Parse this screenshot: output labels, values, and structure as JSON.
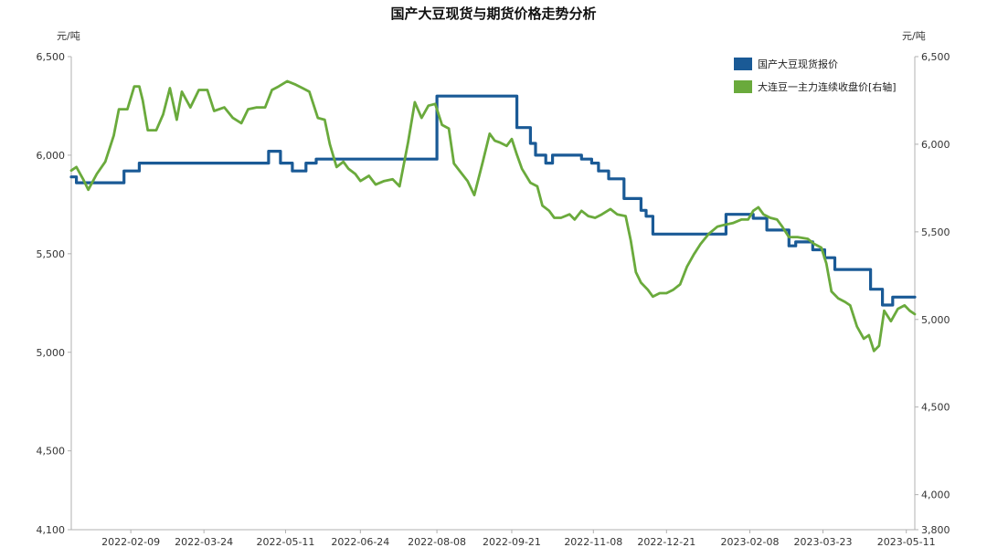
{
  "chart_data": {
    "type": "line",
    "title": "国产大豆现货与期货价格走势分析",
    "left_unit": "元/吨",
    "right_unit": "元/吨",
    "left_ylim": [
      4100,
      6500
    ],
    "left_yticks": [
      4100,
      4500,
      5000,
      5500,
      6000,
      6500
    ],
    "left_ytick_labels": [
      "4,100",
      "4,500",
      "5,000",
      "5,500",
      "6,000",
      "6,500"
    ],
    "right_ylim": [
      3800,
      6500
    ],
    "right_yticks": [
      3800,
      4000,
      4500,
      5000,
      5500,
      6000,
      6500
    ],
    "right_ytick_labels": [
      "3,800",
      "4,000",
      "4,500",
      "5,000",
      "5,500",
      "6,000",
      "6,500"
    ],
    "x_range": [
      "2022-01-05",
      "2023-05-16"
    ],
    "xticks": [
      "2022-02-09",
      "2022-03-24",
      "2022-05-11",
      "2022-06-24",
      "2022-08-08",
      "2022-09-21",
      "2022-11-08",
      "2022-12-21",
      "2023-02-08",
      "2023-03-23",
      "2023-05-11"
    ],
    "grid": false,
    "legend_position": "top-right",
    "series": [
      {
        "name": "国产大豆现货报价",
        "axis": "left",
        "color": "#1a5a96",
        "interpolation": "step",
        "points": [
          [
            "2022-01-05",
            5890
          ],
          [
            "2022-01-08",
            5860
          ],
          [
            "2022-02-03",
            5860
          ],
          [
            "2022-02-05",
            5920
          ],
          [
            "2022-02-14",
            5960
          ],
          [
            "2022-04-22",
            5960
          ],
          [
            "2022-05-01",
            6020
          ],
          [
            "2022-05-08",
            5960
          ],
          [
            "2022-05-15",
            5920
          ],
          [
            "2022-05-23",
            5960
          ],
          [
            "2022-05-29",
            5980
          ],
          [
            "2022-08-04",
            5980
          ],
          [
            "2022-08-08",
            6300
          ],
          [
            "2022-09-24",
            6140
          ],
          [
            "2022-10-02",
            6060
          ],
          [
            "2022-10-05",
            6000
          ],
          [
            "2022-10-11",
            5960
          ],
          [
            "2022-10-15",
            6000
          ],
          [
            "2022-11-01",
            5980
          ],
          [
            "2022-11-07",
            5960
          ],
          [
            "2022-11-11",
            5920
          ],
          [
            "2022-11-17",
            5880
          ],
          [
            "2022-11-26",
            5780
          ],
          [
            "2022-12-06",
            5720
          ],
          [
            "2022-12-09",
            5690
          ],
          [
            "2022-12-13",
            5600
          ],
          [
            "2023-01-25",
            5700
          ],
          [
            "2023-02-10",
            5680
          ],
          [
            "2023-02-18",
            5620
          ],
          [
            "2023-02-24",
            5620
          ],
          [
            "2023-03-03",
            5540
          ],
          [
            "2023-03-07",
            5560
          ],
          [
            "2023-03-17",
            5520
          ],
          [
            "2023-03-24",
            5480
          ],
          [
            "2023-03-30",
            5420
          ],
          [
            "2023-04-20",
            5320
          ],
          [
            "2023-04-27",
            5240
          ],
          [
            "2023-05-03",
            5280
          ],
          [
            "2023-05-16",
            5280
          ]
        ]
      },
      {
        "name": "大连豆一主力连续收盘价[右轴]",
        "axis": "right",
        "color": "#6aaa3c",
        "interpolation": "linear",
        "points": [
          [
            "2022-01-05",
            5850
          ],
          [
            "2022-01-08",
            5870
          ],
          [
            "2022-01-12",
            5800
          ],
          [
            "2022-01-15",
            5740
          ],
          [
            "2022-01-20",
            5830
          ],
          [
            "2022-01-25",
            5900
          ],
          [
            "2022-01-30",
            6050
          ],
          [
            "2022-02-02",
            6200
          ],
          [
            "2022-02-07",
            6200
          ],
          [
            "2022-02-11",
            6330
          ],
          [
            "2022-02-14",
            6330
          ],
          [
            "2022-02-16",
            6250
          ],
          [
            "2022-02-19",
            6080
          ],
          [
            "2022-02-24",
            6080
          ],
          [
            "2022-02-28",
            6170
          ],
          [
            "2022-03-04",
            6320
          ],
          [
            "2022-03-08",
            6140
          ],
          [
            "2022-03-11",
            6300
          ],
          [
            "2022-03-16",
            6210
          ],
          [
            "2022-03-21",
            6310
          ],
          [
            "2022-03-26",
            6310
          ],
          [
            "2022-03-30",
            6190
          ],
          [
            "2022-04-05",
            6210
          ],
          [
            "2022-04-10",
            6150
          ],
          [
            "2022-04-15",
            6120
          ],
          [
            "2022-04-19",
            6200
          ],
          [
            "2022-04-24",
            6210
          ],
          [
            "2022-04-29",
            6210
          ],
          [
            "2022-05-03",
            6310
          ],
          [
            "2022-05-07",
            6330
          ],
          [
            "2022-05-12",
            6360
          ],
          [
            "2022-05-17",
            6340
          ],
          [
            "2022-05-21",
            6320
          ],
          [
            "2022-05-25",
            6300
          ],
          [
            "2022-05-30",
            6150
          ],
          [
            "2022-06-03",
            6140
          ],
          [
            "2022-06-06",
            6000
          ],
          [
            "2022-06-10",
            5870
          ],
          [
            "2022-06-14",
            5900
          ],
          [
            "2022-06-17",
            5860
          ],
          [
            "2022-06-21",
            5830
          ],
          [
            "2022-06-24",
            5790
          ],
          [
            "2022-06-29",
            5820
          ],
          [
            "2022-07-03",
            5770
          ],
          [
            "2022-07-08",
            5790
          ],
          [
            "2022-07-13",
            5800
          ],
          [
            "2022-07-17",
            5760
          ],
          [
            "2022-07-22",
            6010
          ],
          [
            "2022-07-26",
            6240
          ],
          [
            "2022-07-30",
            6150
          ],
          [
            "2022-08-03",
            6220
          ],
          [
            "2022-08-07",
            6230
          ],
          [
            "2022-08-11",
            6110
          ],
          [
            "2022-08-15",
            6090
          ],
          [
            "2022-08-18",
            5890
          ],
          [
            "2022-08-22",
            5840
          ],
          [
            "2022-08-26",
            5790
          ],
          [
            "2022-08-30",
            5710
          ],
          [
            "2022-09-04",
            5900
          ],
          [
            "2022-09-08",
            6060
          ],
          [
            "2022-09-11",
            6020
          ],
          [
            "2022-09-14",
            6010
          ],
          [
            "2022-09-18",
            5990
          ],
          [
            "2022-09-21",
            6030
          ],
          [
            "2022-09-24",
            5940
          ],
          [
            "2022-09-27",
            5860
          ],
          [
            "2022-10-02",
            5780
          ],
          [
            "2022-10-06",
            5760
          ],
          [
            "2022-10-09",
            5650
          ],
          [
            "2022-10-13",
            5620
          ],
          [
            "2022-10-16",
            5580
          ],
          [
            "2022-10-20",
            5580
          ],
          [
            "2022-10-25",
            5600
          ],
          [
            "2022-10-28",
            5570
          ],
          [
            "2022-11-01",
            5620
          ],
          [
            "2022-11-05",
            5590
          ],
          [
            "2022-11-09",
            5580
          ],
          [
            "2022-11-13",
            5600
          ],
          [
            "2022-11-18",
            5630
          ],
          [
            "2022-11-22",
            5600
          ],
          [
            "2022-11-27",
            5590
          ],
          [
            "2022-11-30",
            5450
          ],
          [
            "2022-12-03",
            5270
          ],
          [
            "2022-12-06",
            5210
          ],
          [
            "2022-12-10",
            5170
          ],
          [
            "2022-12-13",
            5130
          ],
          [
            "2022-12-17",
            5150
          ],
          [
            "2022-12-21",
            5150
          ],
          [
            "2022-12-25",
            5170
          ],
          [
            "2022-12-29",
            5200
          ],
          [
            "2023-01-02",
            5300
          ],
          [
            "2023-01-06",
            5370
          ],
          [
            "2023-01-10",
            5430
          ],
          [
            "2023-01-15",
            5490
          ],
          [
            "2023-01-20",
            5530
          ],
          [
            "2023-01-24",
            5540
          ],
          [
            "2023-01-29",
            5550
          ],
          [
            "2023-02-03",
            5570
          ],
          [
            "2023-02-07",
            5570
          ],
          [
            "2023-02-10",
            5620
          ],
          [
            "2023-02-13",
            5640
          ],
          [
            "2023-02-16",
            5600
          ],
          [
            "2023-02-20",
            5580
          ],
          [
            "2023-02-24",
            5570
          ],
          [
            "2023-02-27",
            5530
          ],
          [
            "2023-03-03",
            5470
          ],
          [
            "2023-03-08",
            5470
          ],
          [
            "2023-03-14",
            5460
          ],
          [
            "2023-03-18",
            5430
          ],
          [
            "2023-03-22",
            5410
          ],
          [
            "2023-03-25",
            5320
          ],
          [
            "2023-03-28",
            5160
          ],
          [
            "2023-04-01",
            5120
          ],
          [
            "2023-04-05",
            5100
          ],
          [
            "2023-04-08",
            5080
          ],
          [
            "2023-04-12",
            4960
          ],
          [
            "2023-04-16",
            4890
          ],
          [
            "2023-04-19",
            4910
          ],
          [
            "2023-04-22",
            4820
          ],
          [
            "2023-04-25",
            4850
          ],
          [
            "2023-04-28",
            5050
          ],
          [
            "2023-05-02",
            4990
          ],
          [
            "2023-05-06",
            5060
          ],
          [
            "2023-05-10",
            5080
          ],
          [
            "2023-05-13",
            5050
          ],
          [
            "2023-05-16",
            5030
          ]
        ]
      }
    ]
  }
}
